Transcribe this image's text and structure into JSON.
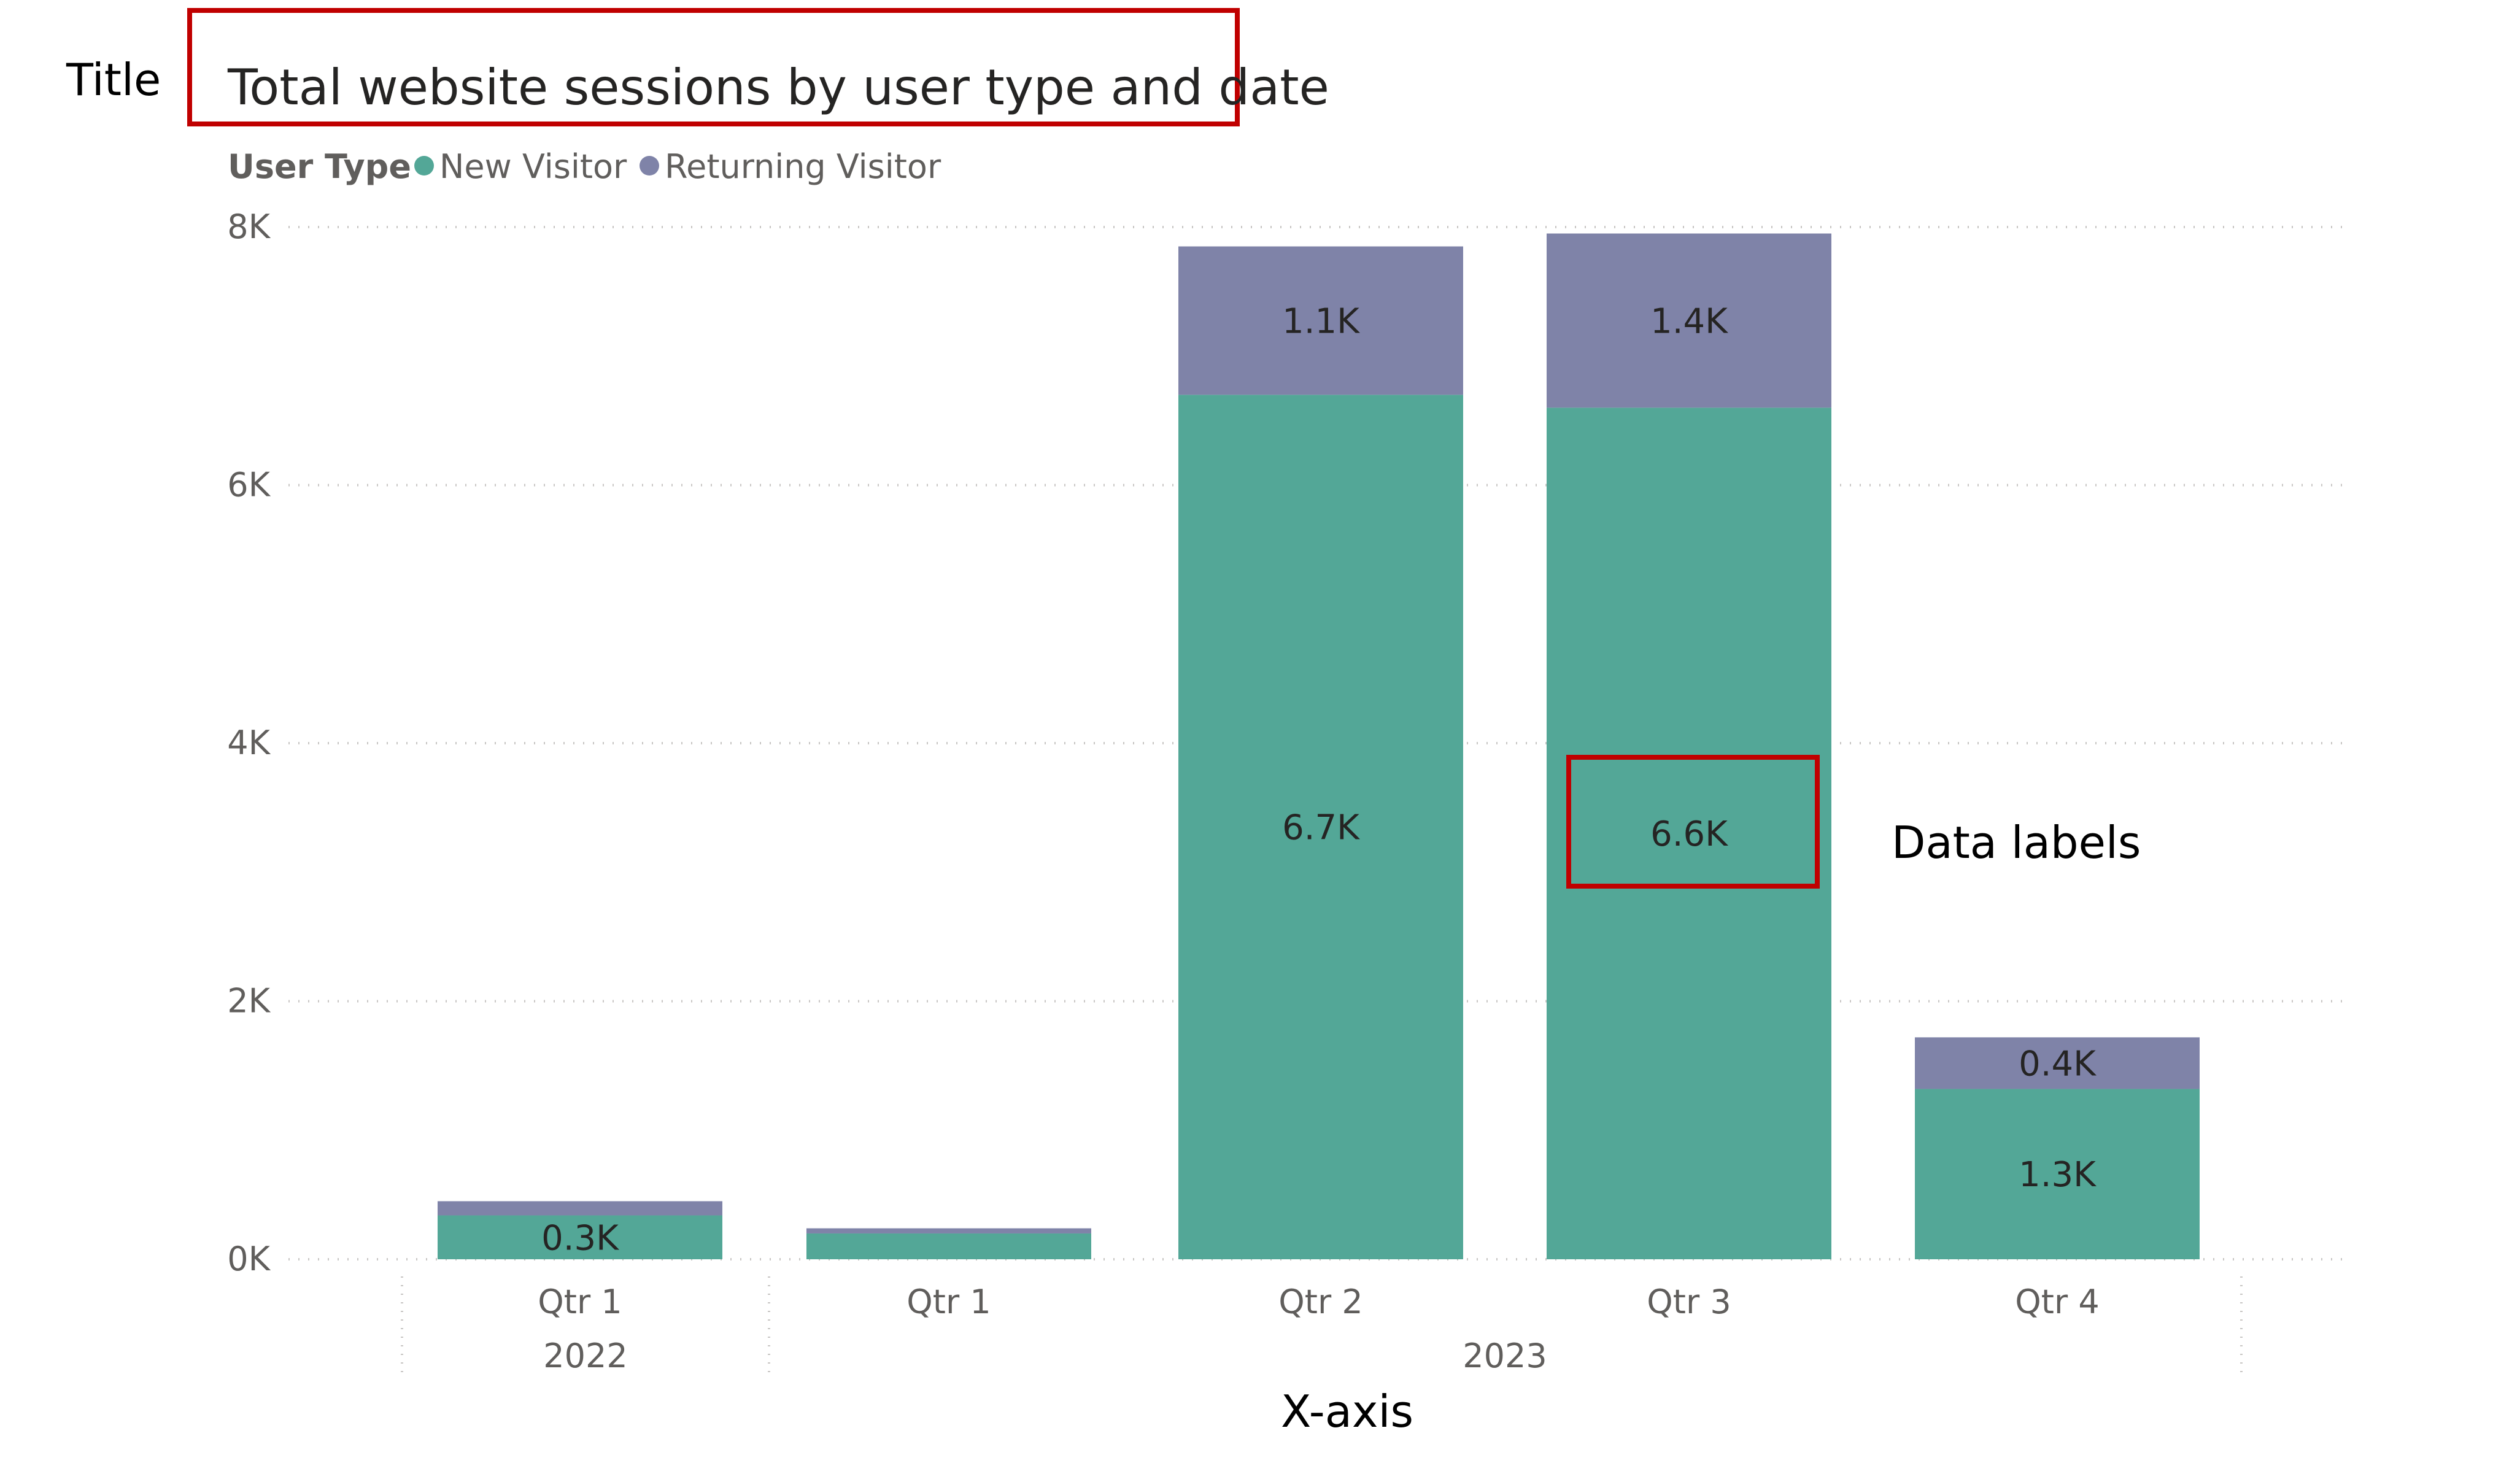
{
  "chart_data": {
    "type": "bar",
    "stacked": true,
    "title": "Total website sessions by user type and date",
    "legend": {
      "title": "User Type",
      "position": "top-left"
    },
    "categories": [
      "Qtr 1",
      "Qtr 1",
      "Qtr 2",
      "Qtr 3",
      "Qtr 4"
    ],
    "category_groups": [
      {
        "label": "2022",
        "span": 1
      },
      {
        "label": "2023",
        "span": 4
      }
    ],
    "series": [
      {
        "name": "New Visitor",
        "color": "#53A797",
        "values": [
          340,
          200,
          6700,
          6600,
          1320
        ],
        "labels": [
          "0.3K",
          "",
          "6.7K",
          "6.6K",
          "1.3K"
        ]
      },
      {
        "name": "Returning Visitor",
        "color": "#7F83A8",
        "values": [
          110,
          40,
          1150,
          1350,
          400
        ],
        "labels": [
          "",
          "",
          "1.1K",
          "1.4K",
          "0.4K"
        ]
      }
    ],
    "y_ticks": [
      "0K",
      "2K",
      "4K",
      "6K",
      "8K"
    ],
    "ylim": [
      0,
      8000
    ],
    "grid": true
  },
  "annotations": {
    "title_callout": "Title",
    "data_labels_callout": "Data labels",
    "xaxis_callout": "X-axis",
    "highlight_color": "#C00000"
  }
}
